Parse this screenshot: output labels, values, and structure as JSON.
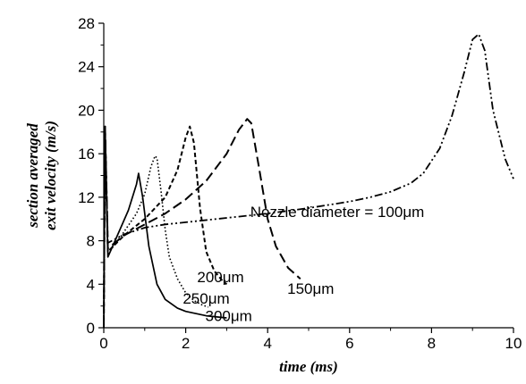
{
  "chart_data": {
    "type": "line",
    "xlabel": "time (ms)",
    "ylabel_lines": [
      "section averaged",
      "exit velocity (m/s)"
    ],
    "xlim": [
      0,
      10
    ],
    "ylim": [
      0,
      28
    ],
    "x_ticks": [
      0,
      2,
      4,
      6,
      8,
      10
    ],
    "y_ticks": [
      0,
      4,
      8,
      12,
      16,
      20,
      24,
      28
    ],
    "grid": false,
    "legend": "none",
    "series": [
      {
        "name": "100µm",
        "style": "dash-dot-dot",
        "x": [
          0,
          0.03,
          0.1,
          0.5,
          1.0,
          1.5,
          2.0,
          3.0,
          4.0,
          5.0,
          6.0,
          6.5,
          7.0,
          7.5,
          7.8,
          8.2,
          8.5,
          8.8,
          9.0,
          9.15,
          9.3,
          9.5,
          9.8,
          10.0
        ],
        "y": [
          0,
          18.5,
          7.8,
          8.6,
          9.2,
          9.5,
          9.7,
          10.1,
          10.5,
          11.0,
          11.6,
          12.0,
          12.5,
          13.3,
          14.2,
          16.5,
          19.5,
          23.5,
          26.5,
          27.0,
          25.5,
          20.0,
          15.5,
          13.7
        ]
      },
      {
        "name": "150µm",
        "style": "long-dash",
        "x": [
          0,
          0.03,
          0.1,
          0.5,
          1.0,
          1.5,
          2.0,
          2.5,
          3.0,
          3.3,
          3.5,
          3.6,
          3.8,
          4.0,
          4.2,
          4.5,
          4.8
        ],
        "y": [
          0,
          18.5,
          7.3,
          8.5,
          9.5,
          10.5,
          11.8,
          13.5,
          16.0,
          18.2,
          19.2,
          18.8,
          14.5,
          10.0,
          7.5,
          5.5,
          4.5
        ]
      },
      {
        "name": "200µm",
        "style": "short-dash",
        "x": [
          0,
          0.03,
          0.1,
          0.5,
          1.0,
          1.5,
          1.8,
          2.0,
          2.1,
          2.2,
          2.35,
          2.5,
          2.7,
          2.9,
          3.0
        ],
        "y": [
          0,
          18.5,
          7.0,
          8.5,
          10.0,
          12.0,
          14.5,
          17.5,
          18.5,
          17.0,
          11.0,
          7.0,
          5.2,
          4.3,
          4.0
        ]
      },
      {
        "name": "250µm",
        "style": "dotted",
        "x": [
          0,
          0.03,
          0.1,
          0.4,
          0.8,
          1.0,
          1.15,
          1.25,
          1.3,
          1.4,
          1.5,
          1.6,
          1.8,
          2.0,
          2.2,
          2.4,
          2.55
        ],
        "y": [
          0,
          18.5,
          6.8,
          8.3,
          10.5,
          12.3,
          14.8,
          15.8,
          15.6,
          12.5,
          9.0,
          6.5,
          4.5,
          3.2,
          2.5,
          2.1,
          1.9
        ]
      },
      {
        "name": "300µm",
        "style": "solid",
        "x": [
          0,
          0.03,
          0.1,
          0.3,
          0.6,
          0.8,
          0.85,
          0.95,
          1.1,
          1.3,
          1.5,
          1.8,
          2.0,
          2.5,
          3.0
        ],
        "y": [
          0,
          18.5,
          6.5,
          8.2,
          10.8,
          13.2,
          14.2,
          12.0,
          7.5,
          4.0,
          2.6,
          1.8,
          1.5,
          1.1,
          0.9
        ]
      }
    ],
    "annotations": [
      {
        "text": "Nozzle diameter = 100μm",
        "x": 5.7,
        "y": 10.2
      },
      {
        "text": "200μm",
        "x": 2.85,
        "y": 4.2
      },
      {
        "text": "150μm",
        "x": 5.05,
        "y": 3.1
      },
      {
        "text": "250μm",
        "x": 2.5,
        "y": 2.2
      },
      {
        "text": "300μm",
        "x": 3.05,
        "y": 0.6
      }
    ]
  }
}
